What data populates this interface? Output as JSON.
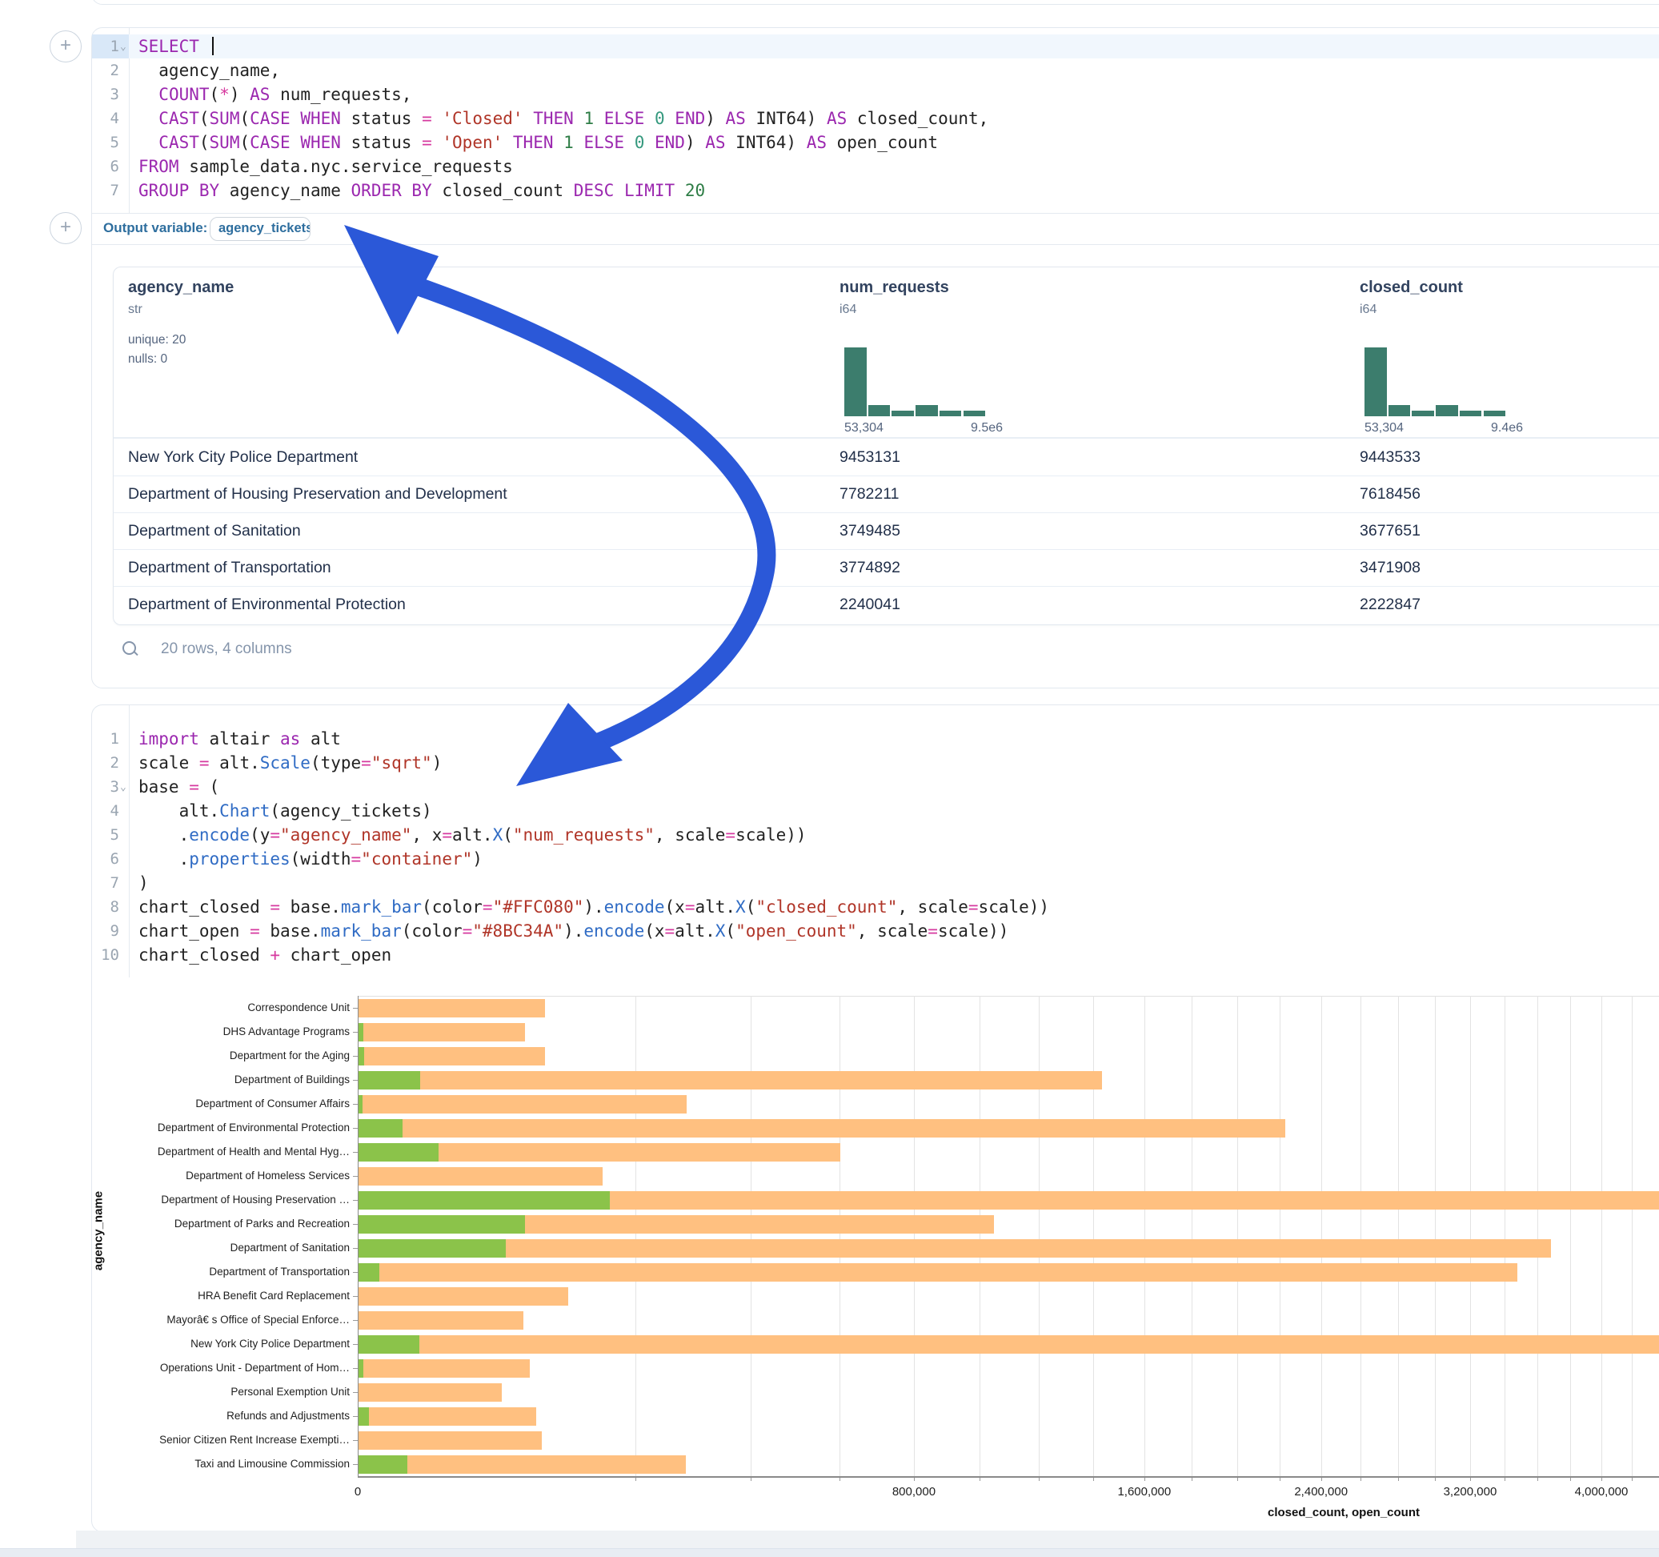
{
  "annotation": {
    "arrow_color": "#2b58d8"
  },
  "plus_buttons": {
    "label": "+"
  },
  "sql_cell": {
    "active_line": 1,
    "lines": [
      {
        "n": 1,
        "fold": true,
        "seg": [
          {
            "t": "SELECT ",
            "c": "k"
          },
          {
            "t": "",
            "c": "caret"
          }
        ]
      },
      {
        "n": 2,
        "fold": false,
        "seg": [
          {
            "t": "  agency_name,",
            "c": "d"
          }
        ]
      },
      {
        "n": 3,
        "fold": false,
        "seg": [
          {
            "t": "  ",
            "c": "d"
          },
          {
            "t": "COUNT",
            "c": "k"
          },
          {
            "t": "(",
            "c": "d"
          },
          {
            "t": "*",
            "c": "o"
          },
          {
            "t": ") ",
            "c": "d"
          },
          {
            "t": "AS",
            "c": "k"
          },
          {
            "t": " num_requests,",
            "c": "d"
          }
        ]
      },
      {
        "n": 4,
        "fold": false,
        "seg": [
          {
            "t": "  ",
            "c": "d"
          },
          {
            "t": "CAST",
            "c": "k"
          },
          {
            "t": "(",
            "c": "d"
          },
          {
            "t": "SUM",
            "c": "k"
          },
          {
            "t": "(",
            "c": "d"
          },
          {
            "t": "CASE WHEN",
            "c": "k"
          },
          {
            "t": " status ",
            "c": "d"
          },
          {
            "t": "=",
            "c": "o"
          },
          {
            "t": " ",
            "c": "d"
          },
          {
            "t": "'Closed'",
            "c": "s"
          },
          {
            "t": " ",
            "c": "d"
          },
          {
            "t": "THEN",
            "c": "k"
          },
          {
            "t": " ",
            "c": "d"
          },
          {
            "t": "1",
            "c": "n"
          },
          {
            "t": " ",
            "c": "d"
          },
          {
            "t": "ELSE",
            "c": "k"
          },
          {
            "t": " ",
            "c": "d"
          },
          {
            "t": "0",
            "c": "n2"
          },
          {
            "t": " ",
            "c": "d"
          },
          {
            "t": "END",
            "c": "k"
          },
          {
            "t": ") ",
            "c": "d"
          },
          {
            "t": "AS",
            "c": "k"
          },
          {
            "t": " INT64) ",
            "c": "d"
          },
          {
            "t": "AS",
            "c": "k"
          },
          {
            "t": " closed_count,",
            "c": "d"
          }
        ]
      },
      {
        "n": 5,
        "fold": false,
        "seg": [
          {
            "t": "  ",
            "c": "d"
          },
          {
            "t": "CAST",
            "c": "k"
          },
          {
            "t": "(",
            "c": "d"
          },
          {
            "t": "SUM",
            "c": "k"
          },
          {
            "t": "(",
            "c": "d"
          },
          {
            "t": "CASE WHEN",
            "c": "k"
          },
          {
            "t": " status ",
            "c": "d"
          },
          {
            "t": "=",
            "c": "o"
          },
          {
            "t": " ",
            "c": "d"
          },
          {
            "t": "'Open'",
            "c": "s"
          },
          {
            "t": " ",
            "c": "d"
          },
          {
            "t": "THEN",
            "c": "k"
          },
          {
            "t": " ",
            "c": "d"
          },
          {
            "t": "1",
            "c": "n"
          },
          {
            "t": " ",
            "c": "d"
          },
          {
            "t": "ELSE",
            "c": "k"
          },
          {
            "t": " ",
            "c": "d"
          },
          {
            "t": "0",
            "c": "n2"
          },
          {
            "t": " ",
            "c": "d"
          },
          {
            "t": "END",
            "c": "k"
          },
          {
            "t": ") ",
            "c": "d"
          },
          {
            "t": "AS",
            "c": "k"
          },
          {
            "t": " INT64) ",
            "c": "d"
          },
          {
            "t": "AS",
            "c": "k"
          },
          {
            "t": " open_count",
            "c": "d"
          }
        ]
      },
      {
        "n": 6,
        "fold": false,
        "seg": [
          {
            "t": "FROM",
            "c": "k"
          },
          {
            "t": " sample_data.nyc.service_requests",
            "c": "d"
          }
        ]
      },
      {
        "n": 7,
        "fold": false,
        "seg": [
          {
            "t": "GROUP BY",
            "c": "k"
          },
          {
            "t": " agency_name ",
            "c": "d"
          },
          {
            "t": "ORDER BY",
            "c": "k"
          },
          {
            "t": " closed_count ",
            "c": "d"
          },
          {
            "t": "DESC",
            "c": "k"
          },
          {
            "t": " ",
            "c": "d"
          },
          {
            "t": "LIMIT",
            "c": "k"
          },
          {
            "t": " ",
            "c": "d"
          },
          {
            "t": "20",
            "c": "n"
          }
        ]
      }
    ],
    "output_variable": {
      "label": "Output variable:",
      "value": "agency_tickets"
    }
  },
  "table": {
    "columns": [
      {
        "name": "agency_name",
        "type": "str",
        "meta": [
          "unique: 20",
          "nulls: 0"
        ]
      },
      {
        "name": "num_requests",
        "type": "i64",
        "hist": {
          "heights": [
            1,
            0.16,
            0.08,
            0.16,
            0.08,
            0.08
          ],
          "min_label": "53,304",
          "max_label": "9.5e6"
        }
      },
      {
        "name": "closed_count",
        "type": "i64",
        "hist": {
          "heights": [
            1,
            0.16,
            0.08,
            0.16,
            0.08,
            0.08
          ],
          "min_label": "53,304",
          "max_label": "9.4e6"
        }
      }
    ],
    "rows": [
      [
        "New York City Police Department",
        "9453131",
        "9443533"
      ],
      [
        "Department of Housing Preservation and Development",
        "7782211",
        "7618456"
      ],
      [
        "Department of Sanitation",
        "3749485",
        "3677651"
      ],
      [
        "Department of Transportation",
        "3774892",
        "3471908"
      ],
      [
        "Department of Environmental Protection",
        "2240041",
        "2222847"
      ]
    ],
    "footer": "20 rows, 4 columns"
  },
  "python_cell": {
    "lines": [
      {
        "n": 1,
        "fold": false,
        "seg": [
          {
            "t": "import",
            "c": "k"
          },
          {
            "t": " altair ",
            "c": "d"
          },
          {
            "t": "as",
            "c": "k"
          },
          {
            "t": " alt",
            "c": "d"
          }
        ]
      },
      {
        "n": 2,
        "fold": false,
        "seg": [
          {
            "t": "scale ",
            "c": "d"
          },
          {
            "t": "=",
            "c": "o"
          },
          {
            "t": " alt.",
            "c": "d"
          },
          {
            "t": "Scale",
            "c": "f"
          },
          {
            "t": "(type",
            "c": "d"
          },
          {
            "t": "=",
            "c": "o"
          },
          {
            "t": "\"sqrt\"",
            "c": "s"
          },
          {
            "t": ")",
            "c": "d"
          }
        ]
      },
      {
        "n": 3,
        "fold": true,
        "seg": [
          {
            "t": "base ",
            "c": "d"
          },
          {
            "t": "=",
            "c": "o"
          },
          {
            "t": " (",
            "c": "d"
          }
        ]
      },
      {
        "n": 4,
        "fold": false,
        "seg": [
          {
            "t": "    alt.",
            "c": "d"
          },
          {
            "t": "Chart",
            "c": "f"
          },
          {
            "t": "(agency_tickets)",
            "c": "d"
          }
        ]
      },
      {
        "n": 5,
        "fold": false,
        "seg": [
          {
            "t": "    .",
            "c": "d"
          },
          {
            "t": "encode",
            "c": "f"
          },
          {
            "t": "(y",
            "c": "d"
          },
          {
            "t": "=",
            "c": "o"
          },
          {
            "t": "\"agency_name\"",
            "c": "s"
          },
          {
            "t": ", x",
            "c": "d"
          },
          {
            "t": "=",
            "c": "o"
          },
          {
            "t": "alt.",
            "c": "d"
          },
          {
            "t": "X",
            "c": "f"
          },
          {
            "t": "(",
            "c": "d"
          },
          {
            "t": "\"num_requests\"",
            "c": "s"
          },
          {
            "t": ", scale",
            "c": "d"
          },
          {
            "t": "=",
            "c": "o"
          },
          {
            "t": "scale))",
            "c": "d"
          }
        ]
      },
      {
        "n": 6,
        "fold": false,
        "seg": [
          {
            "t": "    .",
            "c": "d"
          },
          {
            "t": "properties",
            "c": "f"
          },
          {
            "t": "(width",
            "c": "d"
          },
          {
            "t": "=",
            "c": "o"
          },
          {
            "t": "\"container\"",
            "c": "s"
          },
          {
            "t": ")",
            "c": "d"
          }
        ]
      },
      {
        "n": 7,
        "fold": false,
        "seg": [
          {
            "t": ")",
            "c": "d"
          }
        ]
      },
      {
        "n": 8,
        "fold": false,
        "seg": [
          {
            "t": "chart_closed ",
            "c": "d"
          },
          {
            "t": "=",
            "c": "o"
          },
          {
            "t": " base.",
            "c": "d"
          },
          {
            "t": "mark_bar",
            "c": "f"
          },
          {
            "t": "(color",
            "c": "d"
          },
          {
            "t": "=",
            "c": "o"
          },
          {
            "t": "\"#FFC080\"",
            "c": "s"
          },
          {
            "t": ").",
            "c": "d"
          },
          {
            "t": "encode",
            "c": "f"
          },
          {
            "t": "(x",
            "c": "d"
          },
          {
            "t": "=",
            "c": "o"
          },
          {
            "t": "alt.",
            "c": "d"
          },
          {
            "t": "X",
            "c": "f"
          },
          {
            "t": "(",
            "c": "d"
          },
          {
            "t": "\"closed_count\"",
            "c": "s"
          },
          {
            "t": ", scale",
            "c": "d"
          },
          {
            "t": "=",
            "c": "o"
          },
          {
            "t": "scale))",
            "c": "d"
          }
        ]
      },
      {
        "n": 9,
        "fold": false,
        "seg": [
          {
            "t": "chart_open ",
            "c": "d"
          },
          {
            "t": "=",
            "c": "o"
          },
          {
            "t": " base.",
            "c": "d"
          },
          {
            "t": "mark_bar",
            "c": "f"
          },
          {
            "t": "(color",
            "c": "d"
          },
          {
            "t": "=",
            "c": "o"
          },
          {
            "t": "\"#8BC34A\"",
            "c": "s"
          },
          {
            "t": ").",
            "c": "d"
          },
          {
            "t": "encode",
            "c": "f"
          },
          {
            "t": "(x",
            "c": "d"
          },
          {
            "t": "=",
            "c": "o"
          },
          {
            "t": "alt.",
            "c": "d"
          },
          {
            "t": "X",
            "c": "f"
          },
          {
            "t": "(",
            "c": "d"
          },
          {
            "t": "\"open_count\"",
            "c": "s"
          },
          {
            "t": ", scale",
            "c": "d"
          },
          {
            "t": "=",
            "c": "o"
          },
          {
            "t": "scale))",
            "c": "d"
          }
        ]
      },
      {
        "n": 10,
        "fold": false,
        "seg": [
          {
            "t": "chart_closed ",
            "c": "d"
          },
          {
            "t": "+",
            "c": "o"
          },
          {
            "t": " chart_open",
            "c": "d"
          }
        ]
      }
    ]
  },
  "chart_data": {
    "type": "bar",
    "orientation": "horizontal",
    "x_scale": "sqrt",
    "title": "",
    "xlabel": "closed_count, open_count",
    "ylabel": "agency_name",
    "legend": "none",
    "grid": true,
    "x_ticks": [
      {
        "v": 0,
        "label": "0"
      },
      {
        "v": 800000,
        "label": "800,000"
      },
      {
        "v": 1600000,
        "label": "1,600,000"
      },
      {
        "v": 2400000,
        "label": "2,400,000"
      },
      {
        "v": 3200000,
        "label": "3,200,000"
      },
      {
        "v": 4000000,
        "label": "4,000,000"
      }
    ],
    "gridline_step": 200000,
    "series": [
      {
        "name": "closed_count",
        "color": "#FFC080"
      },
      {
        "name": "open_count",
        "color": "#8BC34A"
      }
    ],
    "categories": [
      "Correspondence Unit",
      "DHS Advantage Programs",
      "Department for the Aging",
      "Department of Buildings",
      "Department of Consumer Affairs",
      "Department of Environmental Protection",
      "Department of Health and Mental Hyg…",
      "Department of Homeless Services",
      "Department of Housing Preservation …",
      "Department of Parks and Recreation",
      "Department of Sanitation",
      "Department of Transportation",
      "HRA Benefit Card Replacement",
      "Mayorâ€ s Office of Special Enforce…",
      "New York City Police Department",
      "Operations Unit - Department of Hom…",
      "Personal Exemption Unit",
      "Refunds and Adjustments",
      "Senior Citizen Rent Increase Exempti…",
      "Taxi and Limousine Commission"
    ],
    "closed_count": [
      90000,
      72000,
      90000,
      1430000,
      278000,
      2222847,
      600000,
      154000,
      7618456,
      1044000,
      3677651,
      3471908,
      114000,
      70000,
      9443533,
      76000,
      53304,
      82000,
      87000,
      277000
    ],
    "open_count": [
      0,
      60,
      80,
      9800,
      40,
      5000,
      16500,
      0,
      163755,
      72000,
      56000,
      1100,
      0,
      0,
      9598,
      60,
      0,
      300,
      0,
      6200
    ]
  }
}
